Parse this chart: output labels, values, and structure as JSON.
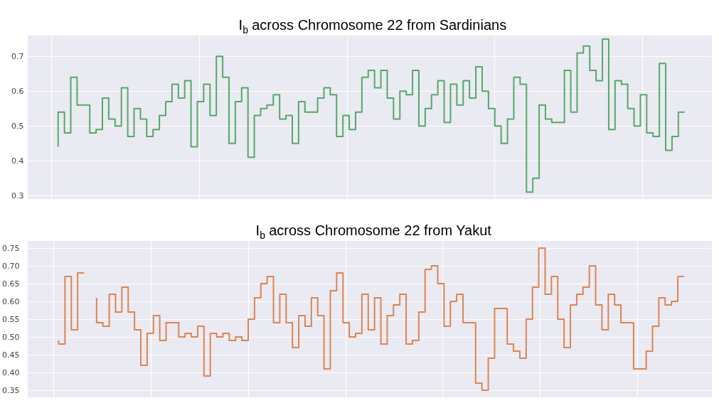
{
  "chart_data": [
    {
      "type": "step",
      "title": "I$_{b}$ across Chromosome 22 from Sardinians",
      "grid": true,
      "tick_labels": "y",
      "categories": [
        null,
        null,
        null,
        null,
        null,
        null,
        null,
        null,
        null,
        null,
        null,
        null,
        null,
        null,
        null,
        null,
        null,
        null,
        null,
        null,
        null,
        null,
        null,
        null,
        null,
        null,
        null,
        null,
        null,
        null,
        null,
        null,
        null,
        null,
        null,
        null,
        null,
        null,
        null,
        null,
        null,
        null,
        null,
        null,
        null,
        null,
        null,
        null,
        null,
        null,
        null,
        null,
        null,
        null,
        null,
        null,
        null,
        null,
        null,
        null,
        null,
        null,
        null,
        null,
        null,
        null,
        null,
        null,
        null,
        null,
        null,
        null,
        null,
        null,
        null,
        null,
        null,
        null,
        null,
        null,
        null,
        null,
        null,
        null,
        null,
        null,
        null,
        null,
        null,
        null,
        null,
        null,
        null,
        null,
        null,
        null,
        null,
        null,
        null,
        null
      ],
      "ylim": [
        0.29,
        0.76
      ],
      "yticks": [
        0.3,
        0.4,
        0.5,
        0.6,
        0.7
      ],
      "series": [
        {
          "color": "#55a868",
          "values": [
            0.44,
            0.54,
            0.48,
            0.64,
            0.56,
            0.56,
            0.48,
            0.49,
            0.58,
            0.52,
            0.5,
            0.61,
            0.47,
            0.55,
            0.52,
            0.47,
            0.49,
            0.53,
            0.57,
            0.62,
            0.58,
            0.63,
            0.44,
            0.57,
            0.62,
            0.53,
            0.7,
            0.64,
            0.45,
            0.57,
            0.61,
            0.41,
            0.53,
            0.55,
            0.56,
            0.59,
            0.52,
            0.53,
            0.45,
            0.57,
            0.54,
            0.54,
            0.58,
            0.61,
            0.59,
            0.47,
            0.53,
            0.49,
            0.54,
            0.64,
            0.66,
            0.61,
            0.66,
            0.58,
            0.52,
            0.6,
            0.59,
            0.66,
            0.5,
            0.55,
            0.59,
            0.63,
            0.51,
            0.62,
            0.56,
            0.63,
            0.58,
            0.67,
            0.6,
            0.55,
            0.5,
            0.45,
            0.52,
            0.64,
            0.62,
            0.31,
            0.35,
            0.56,
            0.52,
            0.51,
            0.51,
            0.66,
            0.54,
            0.71,
            0.73,
            0.66,
            0.63,
            0.75,
            0.49,
            0.63,
            0.62,
            0.55,
            0.5,
            0.59,
            0.48,
            0.47,
            0.68,
            0.43,
            0.47,
            0.54
          ]
        }
      ]
    },
    {
      "type": "step",
      "title": "I$_{b}$ across Chromosome 22 from Yakut",
      "grid": true,
      "tick_labels": "y",
      "categories": [
        null,
        null,
        null,
        null,
        null,
        null,
        null,
        null,
        null,
        null,
        null,
        null,
        null,
        null,
        null,
        null,
        null,
        null,
        null,
        null,
        null,
        null,
        null,
        null,
        null,
        null,
        null,
        null,
        null,
        null,
        null,
        null,
        null,
        null,
        null,
        null,
        null,
        null,
        null,
        null,
        null,
        null,
        null,
        null,
        null,
        null,
        null,
        null,
        null,
        null,
        null,
        null,
        null,
        null,
        null,
        null,
        null,
        null,
        null,
        null,
        null,
        null,
        null,
        null,
        null,
        null,
        null,
        null,
        null,
        null,
        null,
        null,
        null,
        null,
        null,
        null,
        null,
        null,
        null,
        null,
        null,
        null,
        null,
        null,
        null,
        null,
        null,
        null,
        null,
        null,
        null,
        null,
        null,
        null,
        null,
        null,
        null,
        null,
        null,
        null
      ],
      "ylim": [
        0.33,
        0.77
      ],
      "yticks": [
        0.35,
        {
          "value": 0.4,
          "label": "0.40"
        },
        0.45,
        {
          "value": 0.5,
          "label": "0.50"
        },
        0.55,
        {
          "value": 0.6,
          "label": "0.60"
        },
        0.65,
        {
          "value": 0.7,
          "label": "0.70"
        },
        0.75
      ],
      "series": [
        {
          "color": "#dd8452",
          "values": [
            0.49,
            0.48,
            0.67,
            0.52,
            0.68,
            null,
            0.61,
            0.54,
            0.53,
            0.62,
            0.57,
            0.64,
            0.57,
            0.52,
            0.42,
            0.51,
            0.56,
            0.49,
            0.54,
            0.54,
            0.5,
            0.51,
            0.5,
            0.53,
            0.39,
            0.51,
            0.5,
            0.51,
            0.49,
            0.5,
            0.49,
            0.55,
            0.61,
            0.65,
            0.67,
            0.54,
            0.62,
            0.54,
            0.47,
            0.56,
            0.53,
            0.61,
            0.56,
            0.41,
            0.63,
            0.68,
            0.54,
            0.5,
            0.51,
            0.62,
            0.52,
            0.61,
            0.48,
            0.56,
            0.59,
            0.62,
            0.48,
            0.49,
            0.57,
            0.69,
            0.7,
            0.65,
            0.53,
            0.6,
            0.62,
            0.54,
            0.54,
            0.37,
            0.35,
            0.44,
            0.58,
            0.58,
            0.48,
            0.46,
            0.44,
            0.55,
            0.64,
            0.75,
            0.62,
            0.67,
            0.55,
            0.47,
            0.59,
            0.62,
            0.64,
            0.7,
            0.59,
            0.52,
            0.62,
            0.59,
            0.54,
            0.54,
            0.41,
            0.41,
            0.46,
            0.53,
            0.61,
            0.59,
            0.6,
            0.67
          ]
        }
      ]
    }
  ]
}
